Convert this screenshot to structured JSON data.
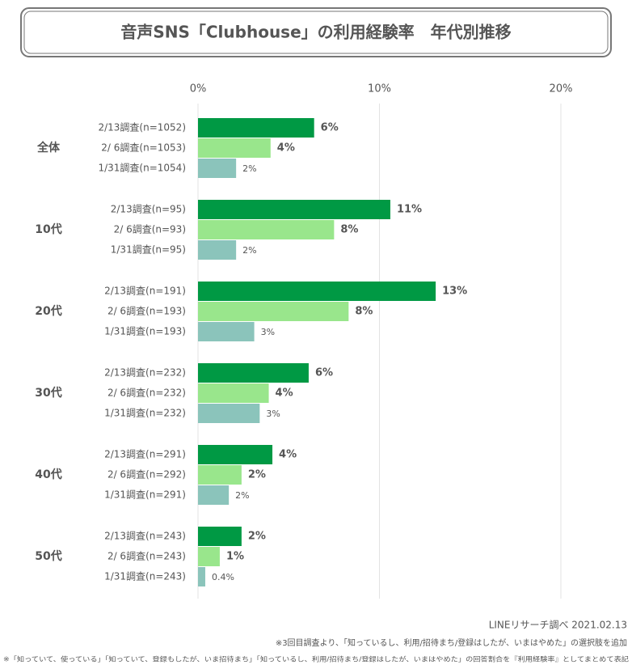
{
  "chart_data": {
    "type": "bar",
    "orientation": "horizontal",
    "title": "音声SNS「Clubhouse」の利用経験率　年代別推移",
    "categories": [
      "全体",
      "10代",
      "20代",
      "30代",
      "40代",
      "50代"
    ],
    "series": [
      {
        "color": "#009944",
        "labels": [
          "2/13調査(n=1052)",
          "2/13調査(n=95)",
          "2/13調査(n=191)",
          "2/13調査(n=232)",
          "2/13調査(n=291)",
          "2/13調査(n=243)"
        ],
        "values": [
          6.4,
          10.6,
          13.1,
          6.1,
          4.1,
          2.4
        ],
        "value_labels": [
          "6%",
          "11%",
          "13%",
          "6%",
          "4%",
          "2%"
        ]
      },
      {
        "color": "#99e68c",
        "labels": [
          "2/ 6調査(n=1053)",
          "2/ 6調査(n=93)",
          "2/ 6調査(n=193)",
          "2/ 6調査(n=232)",
          "2/ 6調査(n=292)",
          "2/ 6調査(n=243)"
        ],
        "values": [
          4.0,
          7.5,
          8.3,
          3.9,
          2.4,
          1.2
        ],
        "value_labels": [
          "4%",
          "8%",
          "8%",
          "4%",
          "2%",
          "1%"
        ]
      },
      {
        "color": "#8bc4bb",
        "labels": [
          "1/31調査(n=1054)",
          "1/31調査(n=95)",
          "1/31調査(n=193)",
          "1/31調査(n=232)",
          "1/31調査(n=291)",
          "1/31調査(n=243)"
        ],
        "values": [
          2.1,
          2.1,
          3.1,
          3.4,
          1.7,
          0.4
        ],
        "value_labels": [
          "2%",
          "2%",
          "3%",
          "3%",
          "2%",
          "0.4%"
        ]
      }
    ],
    "xlim": [
      0,
      20
    ],
    "xticks": [
      {
        "value": 0,
        "label": "0%"
      },
      {
        "value": 10,
        "label": "10%"
      },
      {
        "value": 20,
        "label": "20%"
      }
    ],
    "grid": true,
    "source": "LINEリサーチ調べ 2021.02.13",
    "notes": [
      "※3回目調査より、「知っているし、利用/招待まち/登録はしたが、いまはやめた」の選択肢を追加",
      "※「知っていて、使っている」「知っていて、登録もしたが、いま招待まち」「知っているし、利用/招待まち/登録はしたが、いまはやめた」の回答割合を『利用経験率』としてまとめて表記"
    ]
  }
}
